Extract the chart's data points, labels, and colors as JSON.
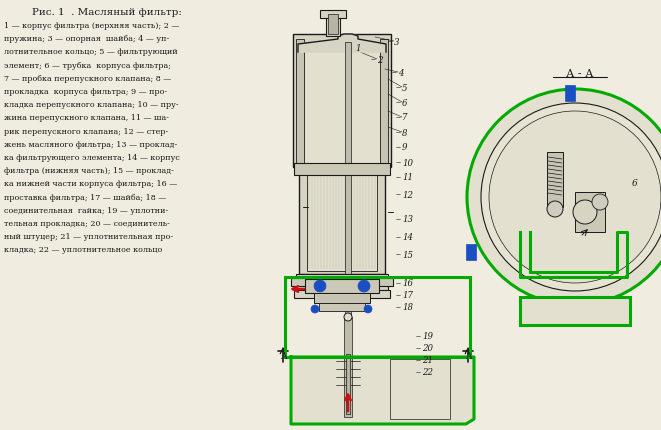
{
  "title": "Рис. 1  . Масляный фильтр:",
  "bg_color": "#f0ece0",
  "legend_lines": [
    "1 — корпус фильтра (верхняя часть); 2 —",
    "пружина; 3 — опорная  шайба; 4 — уп-",
    "лотнительное кольцо; 5 — фильтрующий",
    "элемент; 6 — трубка  корпуса фильтра;",
    "7 — пробка перепускного клапана; 8 —",
    "прокладка  корпуса фильтра; 9 — про-",
    "кладка перепускного клапана; 10 — пру-",
    "жина перепускного клапана, 11 — ша-",
    "рик перепускного клапана; 12 — стер-",
    "жень масляного фильтра; 13 — проклад-",
    "ка фильтрующего элемента; 14 — корпус",
    "фильтра (нижняя часть); 15 — проклад-",
    "ка нижней части корпуса фильтра; 16 —",
    "проставка фильтра; 17 — шайба; 18 —",
    "соединительная  гайка; 19 — уплотни-",
    "тельная прокладка; 20 — соединитель-",
    "ный штуцер; 21 — уплотнительная про-",
    "кладка; 22 — уплотнительное кольцо"
  ],
  "green_color": "#00aa00",
  "blue_color": "#1a4fc4",
  "red_color": "#cc1111",
  "line_color": "#1a1a1a",
  "bg_color2": "#ede8d8",
  "filter_body_color": "#d8d4c4",
  "filter_inner_color": "#e4e0d0"
}
